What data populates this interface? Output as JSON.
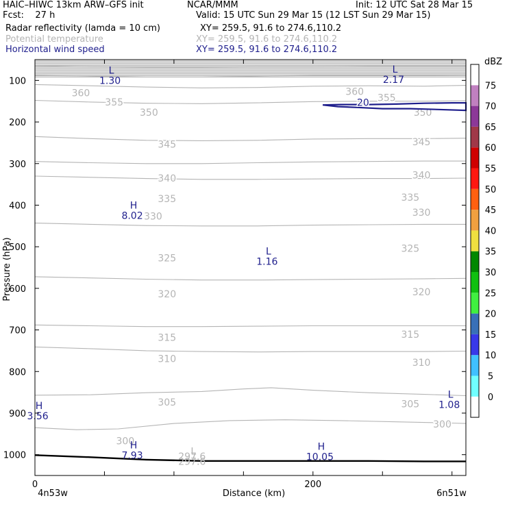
{
  "header": {
    "left1": "HAIC–HIWC 13km ARW–GFS init",
    "center1": "NCAR/MMM",
    "right1": "Init: 12 UTC Sat 28 Mar 15",
    "left2": "Fcst:    27 h",
    "right2": "Valid: 15 UTC Sun 29 Mar 15 (12 LST Sun 29 Mar 15)",
    "fields": [
      {
        "name": "Radar reflectivity (lamda = 10 cm)",
        "xy": "XY= 259.5, 91.6 to 274.6,110.2",
        "color": "#000000"
      },
      {
        "name": "Potential temperature",
        "xy": "XY= 259.5, 91.6 to 274.6,110.2",
        "color": "#b4b4b4"
      },
      {
        "name": "Horizontal wind speed",
        "xy": "XY= 259.5, 91.6 to 274.6,110.2",
        "color": "#1e1e8c"
      }
    ]
  },
  "chart_data": {
    "type": "line",
    "ylabel": "Pressure (hPa)",
    "xlabel": "Distance (km)",
    "x_range": [
      0,
      310
    ],
    "y_range_hpa": [
      1050,
      50
    ],
    "y_ticks": [
      100,
      200,
      300,
      400,
      500,
      600,
      700,
      800,
      900,
      1000
    ],
    "x_ticks": [
      0,
      200
    ],
    "x_end_labels": {
      "left": "4n53w",
      "right": "6n51w"
    },
    "potential_temperature_contours": [
      {
        "value": 360,
        "label": "360",
        "points": [
          [
            0,
            65
          ],
          [
            40,
            67
          ],
          [
            80,
            68
          ],
          [
            120,
            68
          ],
          [
            160,
            67
          ],
          [
            200,
            67
          ],
          [
            240,
            66
          ],
          [
            280,
            66
          ],
          [
            310,
            66
          ]
        ]
      },
      {
        "value": 355,
        "label": "355",
        "points": [
          [
            0,
            88
          ],
          [
            40,
            90
          ],
          [
            80,
            92
          ],
          [
            120,
            92
          ],
          [
            160,
            90
          ],
          [
            200,
            88
          ],
          [
            240,
            88
          ],
          [
            280,
            88
          ],
          [
            310,
            87
          ]
        ]
      },
      {
        "value": 350,
        "label": "350",
        "points": [
          [
            0,
            110
          ],
          [
            40,
            113
          ],
          [
            80,
            116
          ],
          [
            120,
            118
          ],
          [
            160,
            117
          ],
          [
            200,
            114
          ],
          [
            240,
            113
          ],
          [
            280,
            114
          ],
          [
            310,
            112
          ]
        ]
      },
      {
        "value": 345,
        "label": "345",
        "points": [
          [
            0,
            148
          ],
          [
            40,
            152
          ],
          [
            80,
            155
          ],
          [
            120,
            156
          ],
          [
            160,
            154
          ],
          [
            200,
            151
          ],
          [
            240,
            150
          ],
          [
            280,
            150
          ],
          [
            310,
            149
          ]
        ]
      },
      {
        "value": 340,
        "label": "340",
        "points": [
          [
            0,
            235
          ],
          [
            40,
            240
          ],
          [
            80,
            244
          ],
          [
            120,
            245
          ],
          [
            160,
            244
          ],
          [
            200,
            241
          ],
          [
            240,
            240
          ],
          [
            280,
            240
          ],
          [
            310,
            239
          ]
        ]
      },
      {
        "value": 335,
        "label": "335",
        "points": [
          [
            0,
            295
          ],
          [
            40,
            298
          ],
          [
            80,
            300
          ],
          [
            120,
            300
          ],
          [
            160,
            298
          ],
          [
            200,
            296
          ],
          [
            240,
            295
          ],
          [
            280,
            294
          ],
          [
            310,
            294
          ]
        ]
      },
      {
        "value": 330,
        "label": "330",
        "points": [
          [
            0,
            330
          ],
          [
            40,
            333
          ],
          [
            80,
            336
          ],
          [
            120,
            338
          ],
          [
            160,
            338
          ],
          [
            200,
            337
          ],
          [
            240,
            336
          ],
          [
            280,
            336
          ],
          [
            310,
            335
          ]
        ]
      },
      {
        "value": 325,
        "label": "325",
        "points": [
          [
            0,
            443
          ],
          [
            40,
            446
          ],
          [
            80,
            449
          ],
          [
            120,
            450
          ],
          [
            160,
            450
          ],
          [
            200,
            448
          ],
          [
            240,
            447
          ],
          [
            280,
            446
          ],
          [
            310,
            446
          ]
        ]
      },
      {
        "value": 320,
        "label": "320",
        "points": [
          [
            0,
            572
          ],
          [
            40,
            575
          ],
          [
            80,
            578
          ],
          [
            120,
            580
          ],
          [
            160,
            580
          ],
          [
            200,
            579
          ],
          [
            240,
            578
          ],
          [
            280,
            577
          ],
          [
            310,
            576
          ]
        ]
      },
      {
        "value": 315,
        "label": "315",
        "points": [
          [
            0,
            688
          ],
          [
            40,
            690
          ],
          [
            80,
            692
          ],
          [
            120,
            692
          ],
          [
            160,
            691
          ],
          [
            200,
            690
          ],
          [
            240,
            690
          ],
          [
            280,
            690
          ],
          [
            310,
            690
          ]
        ]
      },
      {
        "value": 310,
        "label": "310",
        "points": [
          [
            0,
            741
          ],
          [
            40,
            745
          ],
          [
            80,
            750
          ],
          [
            120,
            752
          ],
          [
            160,
            753
          ],
          [
            200,
            752
          ],
          [
            240,
            752
          ],
          [
            280,
            752
          ],
          [
            310,
            751
          ]
        ]
      },
      {
        "value": 305,
        "label": "305",
        "points": [
          [
            0,
            857
          ],
          [
            40,
            856
          ],
          [
            80,
            851
          ],
          [
            120,
            848
          ],
          [
            150,
            842
          ],
          [
            170,
            839
          ],
          [
            200,
            845
          ],
          [
            240,
            851
          ],
          [
            280,
            855
          ],
          [
            310,
            858
          ]
        ]
      },
      {
        "value": 300,
        "label": "300",
        "points": [
          [
            0,
            935
          ],
          [
            30,
            940
          ],
          [
            60,
            938
          ],
          [
            100,
            925
          ],
          [
            140,
            918
          ],
          [
            180,
            916
          ],
          [
            220,
            918
          ],
          [
            260,
            921
          ],
          [
            300,
            924
          ],
          [
            310,
            925
          ]
        ]
      }
    ],
    "contour_labels": [
      {
        "text": "360",
        "x": 33,
        "y": 138
      },
      {
        "text": "355",
        "x": 57,
        "y": 160
      },
      {
        "text": "350",
        "x": 82,
        "y": 185
      },
      {
        "text": "345",
        "x": 95,
        "y": 262
      },
      {
        "text": "340",
        "x": 95,
        "y": 343
      },
      {
        "text": "335",
        "x": 95,
        "y": 393
      },
      {
        "text": "330",
        "x": 85,
        "y": 435
      },
      {
        "text": "325",
        "x": 95,
        "y": 535
      },
      {
        "text": "320",
        "x": 95,
        "y": 622
      },
      {
        "text": "315",
        "x": 95,
        "y": 726
      },
      {
        "text": "310",
        "x": 95,
        "y": 777
      },
      {
        "text": "305",
        "x": 95,
        "y": 882
      },
      {
        "text": "300",
        "x": 65,
        "y": 975
      },
      {
        "text": "360",
        "x": 230,
        "y": 135
      },
      {
        "text": "355",
        "x": 253,
        "y": 150
      },
      {
        "text": "350",
        "x": 279,
        "y": 185
      },
      {
        "text": "345",
        "x": 278,
        "y": 256
      },
      {
        "text": "340",
        "x": 278,
        "y": 336
      },
      {
        "text": "335",
        "x": 270,
        "y": 389
      },
      {
        "text": "330",
        "x": 278,
        "y": 426
      },
      {
        "text": "325",
        "x": 270,
        "y": 512
      },
      {
        "text": "320",
        "x": 278,
        "y": 617
      },
      {
        "text": "315",
        "x": 270,
        "y": 719
      },
      {
        "text": "310",
        "x": 278,
        "y": 786
      },
      {
        "text": "305",
        "x": 270,
        "y": 886
      },
      {
        "text": "300",
        "x": 293,
        "y": 935
      },
      {
        "text": "297.6",
        "x": 113,
        "y": 1012
      }
    ],
    "wind_speed_contours": [
      {
        "value": 20,
        "label": "20",
        "points": [
          [
            207,
            159
          ],
          [
            220,
            158
          ],
          [
            240,
            158
          ],
          [
            260,
            157
          ],
          [
            280,
            155
          ],
          [
            300,
            154
          ],
          [
            310,
            154
          ]
        ],
        "closing": [
          [
            310,
            172
          ],
          [
            290,
            170
          ],
          [
            270,
            168
          ],
          [
            250,
            168
          ],
          [
            232,
            165
          ],
          [
            218,
            163
          ],
          [
            207,
            159
          ]
        ]
      }
    ],
    "wind_label": {
      "text": "20",
      "x": 236,
      "y": 161
    },
    "extrema": [
      {
        "kind": "L",
        "value": "1.30",
        "x": 54,
        "y": 84,
        "color": "#1e1e8c"
      },
      {
        "kind": "L",
        "value": "2.17",
        "x": 258,
        "y": 81,
        "color": "#1e1e8c"
      },
      {
        "kind": "H",
        "value": "8.02",
        "x": 70,
        "y": 408,
        "color": "#1e1e8c"
      },
      {
        "kind": "L",
        "value": "1.16",
        "x": 167,
        "y": 519,
        "color": "#1e1e8c"
      },
      {
        "kind": "H",
        "value": "3.56",
        "x": 2,
        "y": 890,
        "color": "#1e1e8c"
      },
      {
        "kind": "L",
        "value": "1.08",
        "x": 298,
        "y": 863,
        "color": "#1e1e8c"
      },
      {
        "kind": "H",
        "value": "7.93",
        "x": 70,
        "y": 985,
        "color": "#1e1e8c"
      },
      {
        "kind": "H",
        "value": "10.05",
        "x": 205,
        "y": 988,
        "color": "#1e1e8c"
      },
      {
        "kind": "L",
        "value": "297.6",
        "x": 113,
        "y": 1000,
        "color": "#b4b4b4"
      }
    ],
    "terrain_line": [
      [
        0,
        1001
      ],
      [
        40,
        1006
      ],
      [
        80,
        1012
      ],
      [
        120,
        1015
      ],
      [
        160,
        1015
      ],
      [
        200,
        1015
      ],
      [
        240,
        1015
      ],
      [
        280,
        1016
      ],
      [
        310,
        1016
      ]
    ],
    "colorbar": {
      "unit": "dBZ",
      "levels": [
        "0",
        "5",
        "10",
        "15",
        "20",
        "25",
        "30",
        "35",
        "40",
        "45",
        "50",
        "55",
        "60",
        "65",
        "70",
        "75"
      ],
      "colors": [
        "#ffffff",
        "#70ffff",
        "#40c0ff",
        "#3838e8",
        "#3870b8",
        "#40f040",
        "#10c010",
        "#008800",
        "#f0e040",
        "#f0a040",
        "#ff6010",
        "#ff1810",
        "#d00000",
        "#a03848",
        "#8c3898",
        "#c080c0",
        "#ffffff"
      ]
    }
  }
}
